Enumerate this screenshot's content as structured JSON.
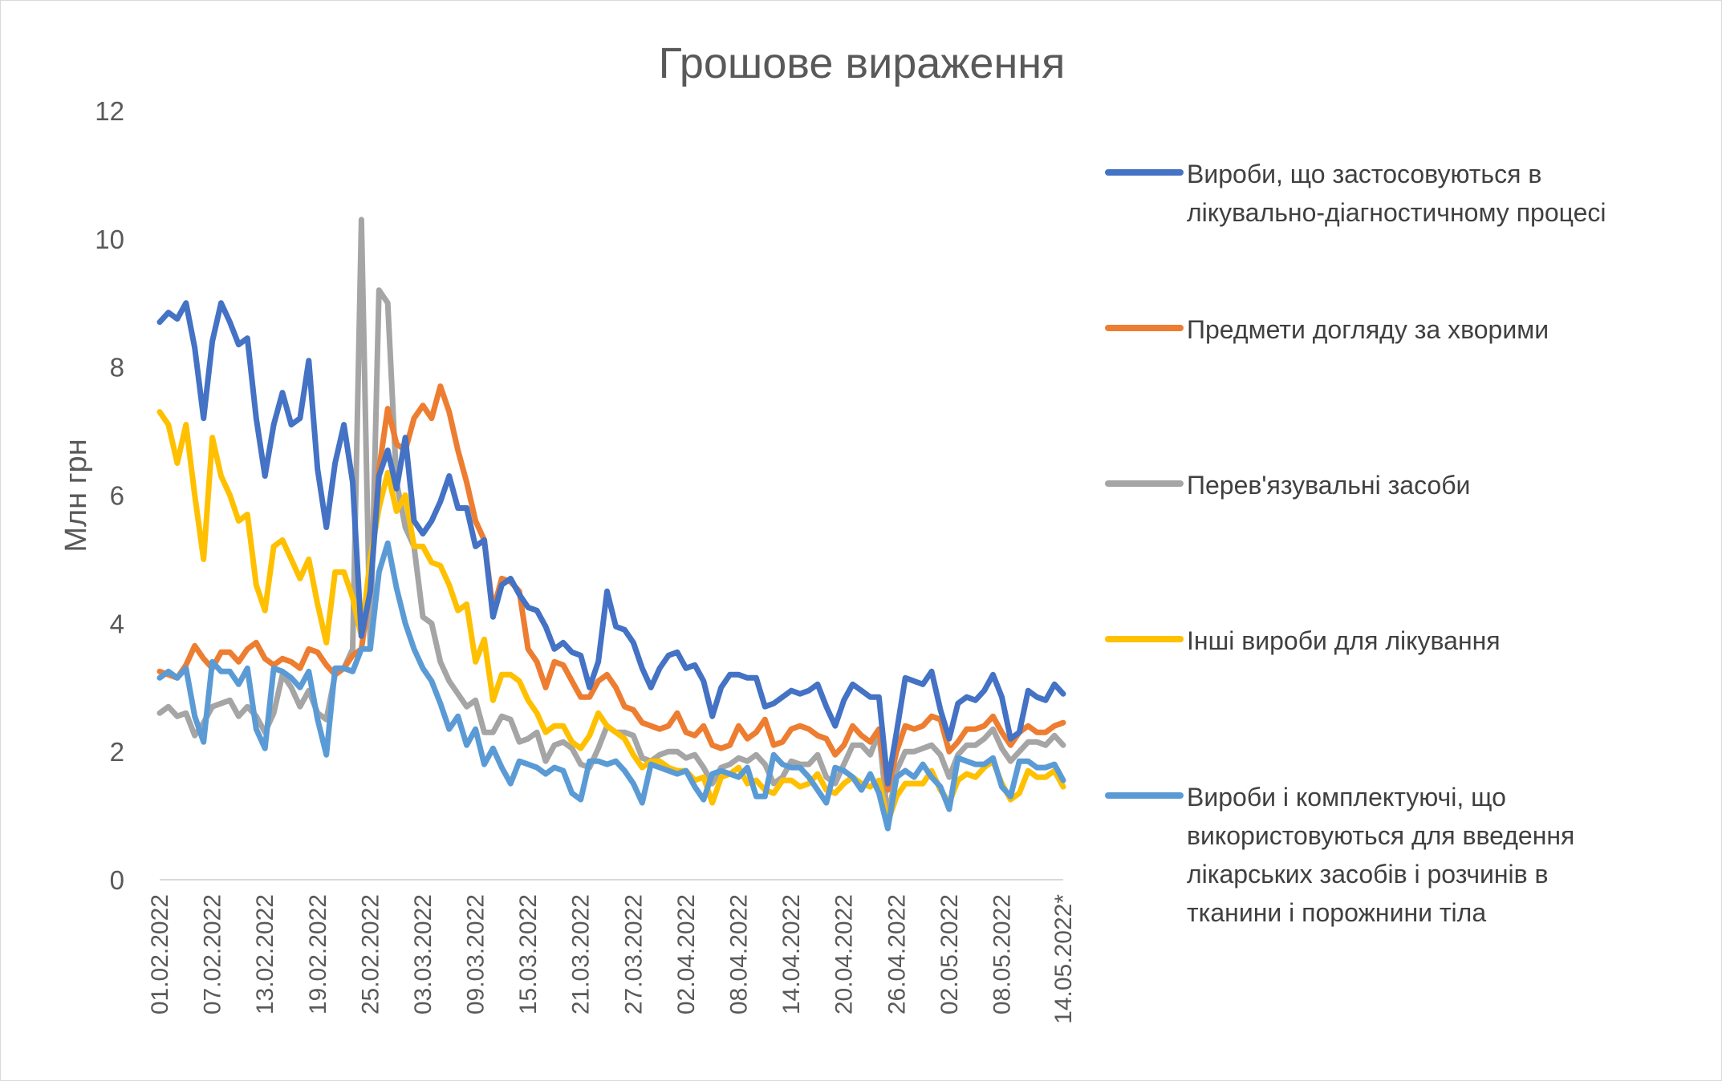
{
  "chart_data": {
    "type": "line",
    "title": "Грошове вираження",
    "xlabel": "",
    "ylabel": "Млн грн",
    "ylim": [
      0,
      12
    ],
    "yticks": [
      0,
      2,
      4,
      6,
      8,
      10,
      12
    ],
    "x_start": "01.02.2022",
    "x_end": "14.05.2022",
    "xtick_labels": [
      "01.02.2022",
      "07.02.2022",
      "13.02.2022",
      "19.02.2022",
      "25.02.2022",
      "03.03.2022",
      "09.03.2022",
      "15.03.2022",
      "21.03.2022",
      "27.03.2022",
      "02.04.2022",
      "08.04.2022",
      "14.04.2022",
      "20.04.2022",
      "26.04.2022",
      "02.05.2022",
      "08.05.2022",
      "14.05.2022*"
    ],
    "grid": false,
    "legend_position": "right",
    "series": [
      {
        "name": "Вироби, що застосовуються в лікувально-діагностичному процесі",
        "color": "#4472C4",
        "values": [
          8.7,
          8.85,
          8.75,
          9.0,
          8.3,
          7.2,
          8.4,
          9.0,
          8.7,
          8.35,
          8.45,
          7.2,
          6.3,
          7.1,
          7.6,
          7.1,
          7.2,
          8.1,
          6.4,
          5.5,
          6.5,
          7.1,
          6.2,
          3.8,
          4.5,
          6.3,
          6.7,
          6.1,
          6.9,
          5.6,
          5.4,
          5.6,
          5.9,
          6.3,
          5.8,
          5.8,
          5.2,
          5.3,
          4.1,
          4.6,
          4.7,
          4.45,
          4.25,
          4.2,
          3.95,
          3.6,
          3.7,
          3.55,
          3.5,
          3.0,
          3.4,
          4.5,
          3.95,
          3.9,
          3.7,
          3.3,
          3.0,
          3.3,
          3.5,
          3.55,
          3.3,
          3.35,
          3.1,
          2.55,
          3.0,
          3.2,
          3.2,
          3.15,
          3.15,
          2.7,
          2.75,
          2.85,
          2.95,
          2.9,
          2.95,
          3.05,
          2.7,
          2.4,
          2.8,
          3.05,
          2.95,
          2.85,
          2.85,
          1.5,
          2.3,
          3.15,
          3.1,
          3.05,
          3.25,
          2.65,
          2.2,
          2.75,
          2.85,
          2.8,
          2.95,
          3.2,
          2.85,
          2.2,
          2.3,
          2.95,
          2.85,
          2.8,
          3.05,
          2.9
        ]
      },
      {
        "name": "Предмети догляду за хворими",
        "color": "#ED7D31",
        "values": [
          3.25,
          3.2,
          3.15,
          3.35,
          3.65,
          3.45,
          3.3,
          3.55,
          3.55,
          3.4,
          3.6,
          3.7,
          3.45,
          3.35,
          3.45,
          3.4,
          3.3,
          3.6,
          3.55,
          3.35,
          3.2,
          3.3,
          3.5,
          3.6,
          4.6,
          6.4,
          7.35,
          6.8,
          6.7,
          7.2,
          7.4,
          7.2,
          7.7,
          7.3,
          6.7,
          6.2,
          5.6,
          5.3,
          4.2,
          4.7,
          4.65,
          4.5,
          3.6,
          3.4,
          3.0,
          3.4,
          3.35,
          3.1,
          2.85,
          2.85,
          3.1,
          3.2,
          3.0,
          2.7,
          2.65,
          2.45,
          2.4,
          2.35,
          2.4,
          2.6,
          2.3,
          2.25,
          2.4,
          2.1,
          2.05,
          2.1,
          2.4,
          2.2,
          2.3,
          2.5,
          2.1,
          2.15,
          2.35,
          2.4,
          2.35,
          2.25,
          2.2,
          1.95,
          2.1,
          2.4,
          2.25,
          2.15,
          2.35,
          1.4,
          2.0,
          2.4,
          2.35,
          2.4,
          2.55,
          2.5,
          2.0,
          2.15,
          2.35,
          2.35,
          2.4,
          2.55,
          2.3,
          2.1,
          2.3,
          2.4,
          2.3,
          2.3,
          2.4,
          2.45
        ]
      },
      {
        "name": "Перев'язувальні засоби",
        "color": "#A5A5A5",
        "values": [
          2.6,
          2.7,
          2.55,
          2.6,
          2.25,
          2.45,
          2.7,
          2.75,
          2.8,
          2.55,
          2.7,
          2.55,
          2.3,
          2.6,
          3.2,
          3.0,
          2.7,
          2.95,
          2.6,
          2.5,
          3.2,
          3.3,
          3.6,
          10.3,
          3.6,
          9.2,
          9.0,
          6.2,
          5.5,
          5.2,
          4.1,
          4.0,
          3.4,
          3.1,
          2.9,
          2.7,
          2.8,
          2.3,
          2.3,
          2.55,
          2.5,
          2.15,
          2.2,
          2.3,
          1.85,
          2.1,
          2.15,
          2.05,
          1.8,
          1.75,
          2.05,
          2.4,
          2.3,
          2.3,
          2.25,
          1.9,
          1.85,
          1.95,
          2.0,
          2.0,
          1.9,
          1.95,
          1.75,
          1.5,
          1.75,
          1.8,
          1.9,
          1.85,
          1.95,
          1.8,
          1.5,
          1.6,
          1.85,
          1.8,
          1.8,
          1.95,
          1.6,
          1.5,
          1.8,
          2.1,
          2.1,
          1.95,
          2.3,
          0.95,
          1.7,
          2.0,
          2.0,
          2.05,
          2.1,
          1.95,
          1.6,
          1.95,
          2.1,
          2.1,
          2.2,
          2.35,
          2.05,
          1.85,
          2.0,
          2.15,
          2.15,
          2.1,
          2.25,
          2.1
        ]
      },
      {
        "name": "Інші вироби для лікування",
        "color": "#FFC000",
        "values": [
          7.3,
          7.1,
          6.5,
          7.1,
          6.0,
          5.0,
          6.9,
          6.3,
          6.0,
          5.6,
          5.7,
          4.6,
          4.2,
          5.2,
          5.3,
          5.0,
          4.7,
          5.0,
          4.3,
          3.7,
          4.8,
          4.8,
          4.4,
          3.8,
          5.0,
          5.8,
          6.35,
          5.75,
          6.0,
          5.2,
          5.2,
          4.95,
          4.9,
          4.6,
          4.2,
          4.3,
          3.4,
          3.75,
          2.8,
          3.2,
          3.2,
          3.1,
          2.8,
          2.6,
          2.3,
          2.4,
          2.4,
          2.15,
          2.05,
          2.25,
          2.6,
          2.4,
          2.3,
          2.2,
          1.95,
          1.75,
          1.85,
          1.85,
          1.75,
          1.7,
          1.7,
          1.55,
          1.6,
          1.2,
          1.6,
          1.65,
          1.75,
          1.5,
          1.55,
          1.4,
          1.35,
          1.55,
          1.55,
          1.45,
          1.5,
          1.65,
          1.4,
          1.35,
          1.5,
          1.6,
          1.5,
          1.45,
          1.55,
          0.9,
          1.3,
          1.5,
          1.5,
          1.5,
          1.7,
          1.4,
          1.2,
          1.55,
          1.65,
          1.6,
          1.75,
          1.85,
          1.5,
          1.25,
          1.35,
          1.7,
          1.6,
          1.6,
          1.7,
          1.45
        ]
      },
      {
        "name": "Вироби і комплектуючі, що використовуються для введення лікарських засобів і розчинів в тканини і порожнини тіла",
        "color": "#5B9BD5",
        "values": [
          3.15,
          3.25,
          3.15,
          3.3,
          2.55,
          2.15,
          3.4,
          3.25,
          3.25,
          3.05,
          3.3,
          2.35,
          2.05,
          3.3,
          3.25,
          3.15,
          3.0,
          3.25,
          2.5,
          1.95,
          3.3,
          3.3,
          3.25,
          3.6,
          3.6,
          4.8,
          5.25,
          4.55,
          4.0,
          3.6,
          3.3,
          3.1,
          2.75,
          2.35,
          2.55,
          2.1,
          2.35,
          1.8,
          2.05,
          1.75,
          1.5,
          1.85,
          1.8,
          1.75,
          1.65,
          1.75,
          1.7,
          1.35,
          1.25,
          1.85,
          1.85,
          1.8,
          1.85,
          1.7,
          1.5,
          1.2,
          1.8,
          1.75,
          1.7,
          1.65,
          1.7,
          1.45,
          1.25,
          1.65,
          1.7,
          1.65,
          1.6,
          1.75,
          1.3,
          1.3,
          1.95,
          1.8,
          1.75,
          1.75,
          1.6,
          1.4,
          1.2,
          1.75,
          1.7,
          1.6,
          1.4,
          1.65,
          1.35,
          0.8,
          1.6,
          1.7,
          1.6,
          1.8,
          1.6,
          1.45,
          1.1,
          1.9,
          1.85,
          1.8,
          1.8,
          1.9,
          1.45,
          1.3,
          1.85,
          1.85,
          1.75,
          1.75,
          1.8,
          1.55
        ]
      }
    ]
  }
}
